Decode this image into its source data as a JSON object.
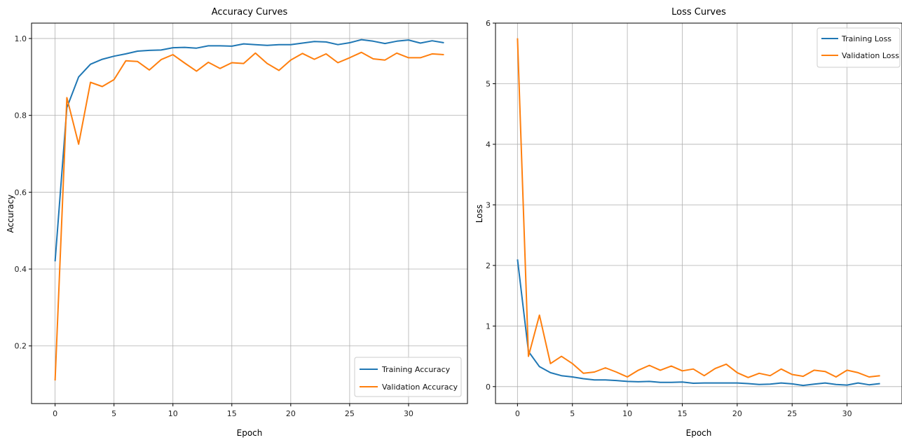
{
  "chart_data": [
    {
      "type": "line",
      "title": "Accuracy Curves",
      "xlabel": "Epoch",
      "ylabel": "Accuracy",
      "xlim": [
        -2,
        35
      ],
      "ylim": [
        0.05,
        1.04
      ],
      "xticks": [
        0,
        5,
        10,
        15,
        20,
        25,
        30
      ],
      "yticks": [
        0.2,
        0.4,
        0.6,
        0.8,
        1.0
      ],
      "ytick_labels": [
        "0.2",
        "0.4",
        "0.6",
        "0.8",
        "1.0"
      ],
      "grid": true,
      "legend_position": "bottom-right",
      "x": [
        0,
        1,
        2,
        3,
        4,
        5,
        6,
        7,
        8,
        9,
        10,
        11,
        12,
        13,
        14,
        15,
        16,
        17,
        18,
        19,
        20,
        21,
        22,
        23,
        24,
        25,
        26,
        27,
        28,
        29,
        30,
        31,
        32,
        33
      ],
      "series": [
        {
          "name": "Training Accuracy",
          "color": "#1f77b4",
          "values": [
            0.42,
            0.82,
            0.9,
            0.933,
            0.946,
            0.954,
            0.96,
            0.967,
            0.969,
            0.97,
            0.976,
            0.977,
            0.975,
            0.981,
            0.981,
            0.98,
            0.986,
            0.984,
            0.982,
            0.984,
            0.984,
            0.988,
            0.992,
            0.991,
            0.984,
            0.989,
            0.997,
            0.993,
            0.987,
            0.993,
            0.996,
            0.988,
            0.994,
            0.989
          ]
        },
        {
          "name": "Validation Accuracy",
          "color": "#ff7f0e",
          "values": [
            0.11,
            0.846,
            0.725,
            0.886,
            0.875,
            0.893,
            0.942,
            0.94,
            0.918,
            0.945,
            0.958,
            0.936,
            0.915,
            0.938,
            0.922,
            0.937,
            0.935,
            0.962,
            0.935,
            0.917,
            0.944,
            0.961,
            0.946,
            0.96,
            0.937,
            0.95,
            0.964,
            0.947,
            0.944,
            0.962,
            0.95,
            0.95,
            0.96,
            0.958
          ]
        }
      ]
    },
    {
      "type": "line",
      "title": "Loss Curves",
      "xlabel": "Epoch",
      "ylabel": "Loss",
      "xlim": [
        -2,
        35
      ],
      "ylim": [
        -0.28,
        6.0
      ],
      "xticks": [
        0,
        5,
        10,
        15,
        20,
        25,
        30
      ],
      "yticks": [
        0,
        1,
        2,
        3,
        4,
        5,
        6
      ],
      "ytick_labels": [
        "0",
        "1",
        "2",
        "3",
        "4",
        "5",
        "6"
      ],
      "grid": true,
      "legend_position": "top-right",
      "x": [
        0,
        1,
        2,
        3,
        4,
        5,
        6,
        7,
        8,
        9,
        10,
        11,
        12,
        13,
        14,
        15,
        16,
        17,
        18,
        19,
        20,
        21,
        22,
        23,
        24,
        25,
        26,
        27,
        28,
        29,
        30,
        31,
        32,
        33
      ],
      "series": [
        {
          "name": "Training Loss",
          "color": "#1f77b4",
          "values": [
            2.1,
            0.58,
            0.33,
            0.23,
            0.18,
            0.16,
            0.13,
            0.11,
            0.11,
            0.1,
            0.085,
            0.08,
            0.085,
            0.07,
            0.07,
            0.075,
            0.055,
            0.06,
            0.06,
            0.06,
            0.06,
            0.05,
            0.035,
            0.04,
            0.06,
            0.045,
            0.02,
            0.04,
            0.06,
            0.035,
            0.025,
            0.06,
            0.03,
            0.05
          ]
        },
        {
          "name": "Validation Loss",
          "color": "#ff7f0e",
          "values": [
            5.75,
            0.5,
            1.18,
            0.38,
            0.5,
            0.38,
            0.22,
            0.24,
            0.31,
            0.24,
            0.16,
            0.27,
            0.35,
            0.27,
            0.34,
            0.26,
            0.29,
            0.18,
            0.3,
            0.37,
            0.23,
            0.15,
            0.22,
            0.18,
            0.29,
            0.2,
            0.17,
            0.27,
            0.25,
            0.16,
            0.27,
            0.23,
            0.16,
            0.18
          ]
        }
      ]
    }
  ]
}
